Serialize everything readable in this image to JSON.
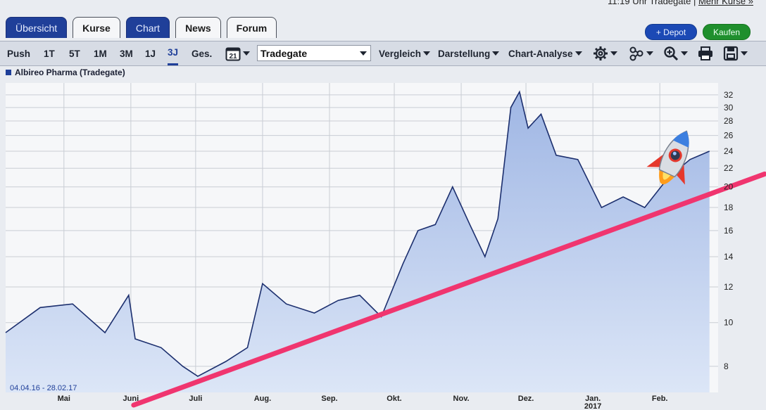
{
  "top_right": {
    "text": "11:19 Uhr Tradegate |",
    "more_link": "Mehr Kurse »"
  },
  "tabs": [
    {
      "label": "Übersicht"
    },
    {
      "label": "Kurse"
    },
    {
      "label": "Chart"
    },
    {
      "label": "News"
    },
    {
      "label": "Forum"
    }
  ],
  "buttons": {
    "depot": "+ Depot",
    "kaufen": "Kaufen"
  },
  "toolbar": {
    "ranges": [
      "Push",
      "1T",
      "5T",
      "1M",
      "3M",
      "1J",
      "3J",
      "Ges."
    ],
    "selected_range": "3J",
    "calendar_day": "21",
    "exchange": "Tradegate",
    "menus": [
      "Vergleich",
      "Darstellung",
      "Chart-Analyse"
    ],
    "icons": [
      "gear-icon",
      "network-icon",
      "zoom-icon",
      "print-icon",
      "save-icon"
    ]
  },
  "colors": {
    "accent": "#1f3f99",
    "buy": "#1f8f2d",
    "trendline": "#f0356f",
    "area_fill": "#b7c9ec"
  },
  "chart_data": {
    "type": "area",
    "series": [
      {
        "name": "Albireo Pharma (Tradegate)",
        "x": [
          "2016-04-04",
          "2016-04-20",
          "2016-05-05",
          "2016-05-20",
          "2016-05-31",
          "2016-06-03",
          "2016-06-15",
          "2016-06-25",
          "2016-07-02",
          "2016-07-15",
          "2016-07-25",
          "2016-08-01",
          "2016-08-12",
          "2016-08-25",
          "2016-09-05",
          "2016-09-15",
          "2016-09-25",
          "2016-10-05",
          "2016-10-12",
          "2016-10-20",
          "2016-10-28",
          "2016-11-05",
          "2016-11-12",
          "2016-11-18",
          "2016-11-24",
          "2016-11-28",
          "2016-12-02",
          "2016-12-08",
          "2016-12-15",
          "2016-12-25",
          "2017-01-05",
          "2017-01-15",
          "2017-01-25",
          "2017-02-05",
          "2017-02-15",
          "2017-02-24"
        ],
        "values": [
          9.5,
          10.8,
          11.0,
          9.5,
          11.5,
          9.2,
          8.8,
          8.0,
          7.6,
          8.2,
          8.8,
          12.2,
          11.0,
          10.5,
          11.2,
          11.5,
          10.3,
          13.5,
          16.0,
          16.5,
          20.0,
          16.5,
          14.0,
          17.0,
          30.0,
          32.5,
          27.0,
          29.0,
          23.5,
          23.0,
          18.0,
          19.0,
          18.0,
          21.0,
          23.0,
          24.0
        ]
      }
    ],
    "period_label": "04.04.16 - 28.02.17",
    "x_tick_labels": [
      "Mai",
      "Juni",
      "Juli",
      "Aug.",
      "Sep.",
      "Okt.",
      "Nov.",
      "Dez.",
      "Jan.",
      "Feb."
    ],
    "x_ticks": [
      "2016-05-01",
      "2016-06-01",
      "2016-07-01",
      "2016-08-01",
      "2016-09-01",
      "2016-10-01",
      "2016-11-01",
      "2016-12-01",
      "2017-01-01",
      "2017-02-01"
    ],
    "year_label": "2017",
    "y_ticks": [
      8,
      10,
      12,
      14,
      16,
      18,
      20,
      22,
      24,
      26,
      28,
      30,
      32
    ],
    "y_scale": "log",
    "ylim": [
      7,
      34
    ],
    "xlim": [
      "2016-04-04",
      "2017-02-28"
    ],
    "grid": true,
    "trendline": {
      "x": [
        "2016-06-01",
        "2017-02-28"
      ],
      "values": [
        7.0,
        21.0
      ]
    },
    "annotation": "rocket-icon"
  }
}
